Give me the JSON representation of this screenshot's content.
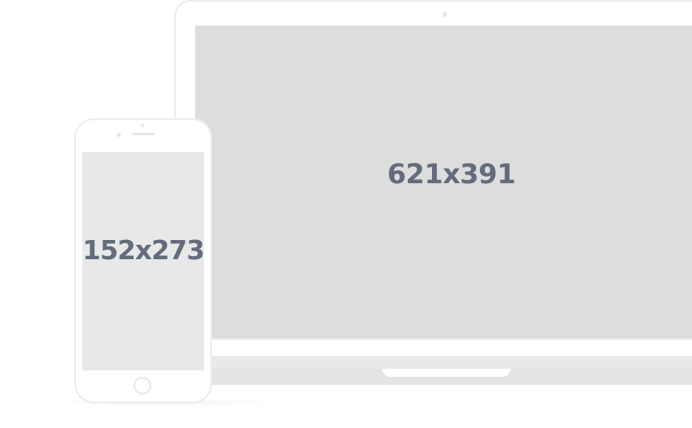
{
  "laptop": {
    "screen_label": "621x391"
  },
  "phone": {
    "screen_label": "152x273"
  },
  "colors": {
    "label_text": "#636b7c",
    "laptop_screen": "#dddddd",
    "phone_screen": "#e8e8e8",
    "device_frame": "#ececec"
  }
}
